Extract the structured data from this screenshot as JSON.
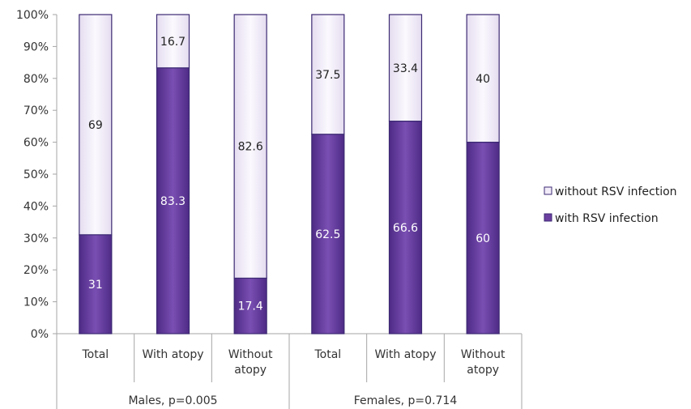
{
  "chart_data": {
    "type": "bar",
    "stacked": true,
    "percent_stacked": true,
    "groups": [
      {
        "label": "Males, p=0.005",
        "categories": [
          "Total",
          "With atopy",
          "Without atopy"
        ]
      },
      {
        "label": "Females, p=0.714",
        "categories": [
          "Total",
          "With atopy",
          "Without atopy"
        ]
      }
    ],
    "categories": [
      "Total",
      "With atopy",
      "Without atopy",
      "Total",
      "With atopy",
      "Without atopy"
    ],
    "series": [
      {
        "name": "with RSV infection",
        "values": [
          31,
          83.3,
          17.4,
          62.5,
          66.6,
          60
        ],
        "color": "#6b3fa0"
      },
      {
        "name": "without RSV infection",
        "values": [
          69,
          16.7,
          82.6,
          37.5,
          33.4,
          40
        ],
        "color": "#f1ecf8"
      }
    ],
    "data_labels": {
      "with": [
        "31",
        "83.3",
        "17.4",
        "62.5",
        "66.6",
        "60"
      ],
      "without": [
        "69",
        "16.7",
        "82.6",
        "37.5",
        "33.4",
        "40"
      ]
    },
    "yticks": [
      "0%",
      "10%",
      "20%",
      "30%",
      "40%",
      "50%",
      "60%",
      "70%",
      "80%",
      "90%",
      "100%"
    ],
    "ylim": [
      0,
      100
    ],
    "grid": false,
    "legend": {
      "position": "right",
      "entries": [
        "without RSV infection",
        "with RSV infection"
      ]
    },
    "colors": {
      "bar_dark": "#6b3fa0",
      "bar_light": "#f1ecf8",
      "bar_edge": "#3c2a73",
      "axis": "#a6a6a6"
    }
  }
}
